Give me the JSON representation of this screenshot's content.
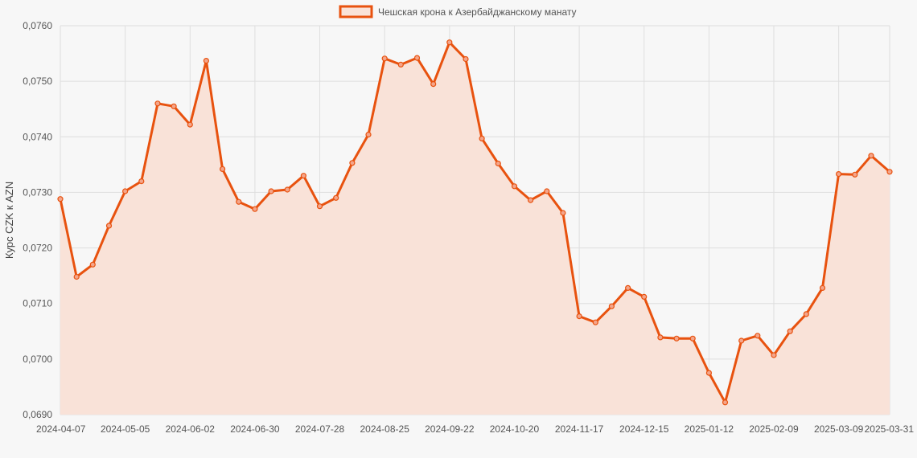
{
  "colors": {
    "line": "#e8520f",
    "fill": "#f9e2d8",
    "grid": "#dedede",
    "point_fill": "#f4a58a",
    "background": "#f7f7f7"
  },
  "chart_data": {
    "type": "area",
    "legend": {
      "label": "Чешская крона к Азербайджанскому манату",
      "position": "top"
    },
    "ylabel": "Курс CZK к AZN",
    "xlabel": "",
    "ylim": [
      0.069,
      0.076
    ],
    "y_ticks": [
      "0,0690",
      "0,0700",
      "0,0710",
      "0,0720",
      "0,0730",
      "0,0740",
      "0,0750",
      "0,0760"
    ],
    "x_ticks": [
      "2024-04-07",
      "2024-05-05",
      "2024-06-02",
      "2024-06-30",
      "2024-07-28",
      "2024-08-25",
      "2024-09-22",
      "2024-10-20",
      "2024-11-17",
      "2024-12-15",
      "2025-01-12",
      "2025-02-09",
      "2025-03-09",
      "2025-03-31"
    ],
    "grid": true,
    "series": [
      {
        "name": "Чешская крона к Азербайджанскому манату",
        "x": [
          "2024-04-07",
          "2024-04-14",
          "2024-04-21",
          "2024-04-28",
          "2024-05-05",
          "2024-05-12",
          "2024-05-19",
          "2024-05-26",
          "2024-06-02",
          "2024-06-09",
          "2024-06-16",
          "2024-06-23",
          "2024-06-30",
          "2024-07-07",
          "2024-07-14",
          "2024-07-21",
          "2024-07-28",
          "2024-08-04",
          "2024-08-11",
          "2024-08-18",
          "2024-08-25",
          "2024-09-01",
          "2024-09-08",
          "2024-09-15",
          "2024-09-22",
          "2024-09-29",
          "2024-10-06",
          "2024-10-13",
          "2024-10-20",
          "2024-10-27",
          "2024-11-03",
          "2024-11-10",
          "2024-11-17",
          "2024-11-24",
          "2024-12-01",
          "2024-12-08",
          "2024-12-15",
          "2024-12-22",
          "2024-12-29",
          "2025-01-05",
          "2025-01-12",
          "2025-01-19",
          "2025-01-26",
          "2025-02-02",
          "2025-02-09",
          "2025-02-16",
          "2025-02-23",
          "2025-03-02",
          "2025-03-09",
          "2025-03-16",
          "2025-03-23",
          "2025-03-31"
        ],
        "values": [
          0.07288,
          0.07148,
          0.0717,
          0.0724,
          0.07302,
          0.0732,
          0.0746,
          0.07455,
          0.07422,
          0.07537,
          0.07342,
          0.07283,
          0.0727,
          0.07302,
          0.07305,
          0.0733,
          0.07275,
          0.0729,
          0.07353,
          0.07404,
          0.07541,
          0.0753,
          0.07542,
          0.07495,
          0.0757,
          0.0754,
          0.07397,
          0.07352,
          0.07311,
          0.07286,
          0.07302,
          0.07263,
          0.07077,
          0.07066,
          0.07095,
          0.07128,
          0.07112,
          0.07039,
          0.07037,
          0.07037,
          0.06975,
          0.06922,
          0.07033,
          0.07042,
          0.07007,
          0.0705,
          0.07081,
          0.07128,
          0.07333,
          0.07332,
          0.07366,
          0.07337
        ]
      }
    ]
  }
}
